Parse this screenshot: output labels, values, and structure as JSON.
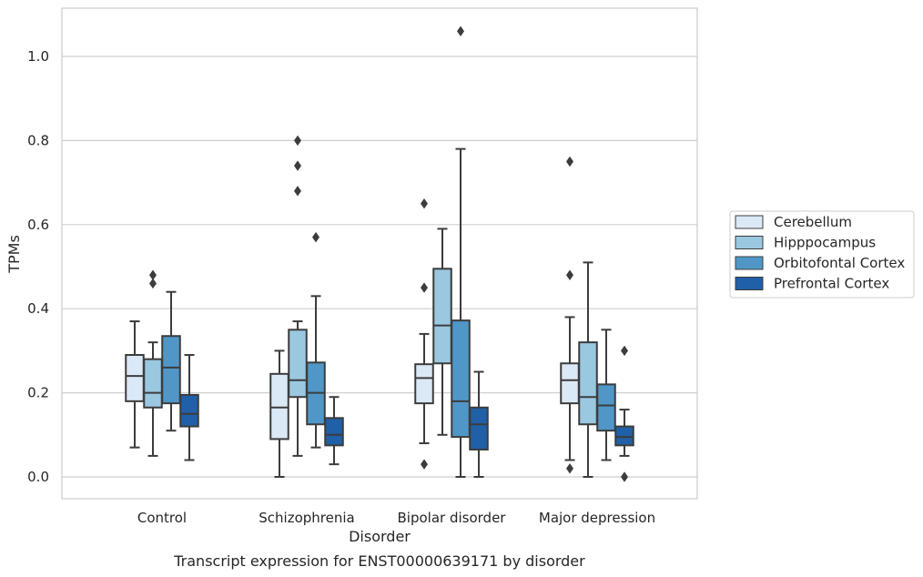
{
  "chart_data": {
    "type": "box",
    "title": "",
    "caption": "Transcript expression for ENST00000639171 by disorder",
    "xlabel": "Disorder",
    "ylabel": "TPMs",
    "ylim": [
      -0.05,
      1.12
    ],
    "yticks": [
      0.0,
      0.2,
      0.4,
      0.6,
      0.8,
      1.0
    ],
    "ytick_labels": [
      "0.0",
      "0.2",
      "0.4",
      "0.6",
      "0.8",
      "1.0"
    ],
    "grid": "horizontal",
    "legend_position": "right",
    "categories": [
      "Control",
      "Schizophrenia",
      "Bipolar disorder",
      "Major depression"
    ],
    "series": [
      {
        "name": "Cerebellum",
        "color": "#dbe9f6",
        "boxes": [
          {
            "whisker_low": 0.07,
            "q1": 0.18,
            "median": 0.24,
            "q3": 0.29,
            "whisker_high": 0.37,
            "outliers": []
          },
          {
            "whisker_low": 0.0,
            "q1": 0.09,
            "median": 0.165,
            "q3": 0.245,
            "whisker_high": 0.3,
            "outliers": []
          },
          {
            "whisker_low": 0.08,
            "q1": 0.175,
            "median": 0.235,
            "q3": 0.268,
            "whisker_high": 0.34,
            "outliers": [
              0.03,
              0.45,
              0.65
            ]
          },
          {
            "whisker_low": 0.04,
            "q1": 0.175,
            "median": 0.23,
            "q3": 0.27,
            "whisker_high": 0.38,
            "outliers": [
              0.02,
              0.48,
              0.75
            ]
          }
        ]
      },
      {
        "name": "Hipppocampus",
        "color": "#9ac8e0",
        "boxes": [
          {
            "whisker_low": 0.05,
            "q1": 0.165,
            "median": 0.2,
            "q3": 0.28,
            "whisker_high": 0.32,
            "outliers": [
              0.46,
              0.48
            ]
          },
          {
            "whisker_low": 0.05,
            "q1": 0.19,
            "median": 0.23,
            "q3": 0.35,
            "whisker_high": 0.37,
            "outliers": [
              0.68,
              0.74,
              0.8
            ]
          },
          {
            "whisker_low": 0.1,
            "q1": 0.27,
            "median": 0.36,
            "q3": 0.495,
            "whisker_high": 0.59,
            "outliers": []
          },
          {
            "whisker_low": 0.0,
            "q1": 0.125,
            "median": 0.19,
            "q3": 0.32,
            "whisker_high": 0.51,
            "outliers": []
          }
        ]
      },
      {
        "name": "Orbitofontal Cortex",
        "color": "#5097c8",
        "boxes": [
          {
            "whisker_low": 0.11,
            "q1": 0.175,
            "median": 0.26,
            "q3": 0.335,
            "whisker_high": 0.44,
            "outliers": []
          },
          {
            "whisker_low": 0.07,
            "q1": 0.125,
            "median": 0.2,
            "q3": 0.272,
            "whisker_high": 0.43,
            "outliers": [
              0.57
            ]
          },
          {
            "whisker_low": 0.0,
            "q1": 0.095,
            "median": 0.18,
            "q3": 0.372,
            "whisker_high": 0.78,
            "outliers": [
              1.06
            ]
          },
          {
            "whisker_low": 0.04,
            "q1": 0.11,
            "median": 0.17,
            "q3": 0.22,
            "whisker_high": 0.35,
            "outliers": []
          }
        ]
      },
      {
        "name": "Prefrontal Cortex",
        "color": "#2060a8",
        "boxes": [
          {
            "whisker_low": 0.04,
            "q1": 0.12,
            "median": 0.15,
            "q3": 0.195,
            "whisker_high": 0.29,
            "outliers": []
          },
          {
            "whisker_low": 0.03,
            "q1": 0.075,
            "median": 0.1,
            "q3": 0.14,
            "whisker_high": 0.19,
            "outliers": []
          },
          {
            "whisker_low": 0.0,
            "q1": 0.065,
            "median": 0.125,
            "q3": 0.165,
            "whisker_high": 0.25,
            "outliers": []
          },
          {
            "whisker_low": 0.05,
            "q1": 0.075,
            "median": 0.095,
            "q3": 0.12,
            "whisker_high": 0.16,
            "outliers": [
              0.0,
              0.3
            ]
          }
        ]
      }
    ]
  }
}
